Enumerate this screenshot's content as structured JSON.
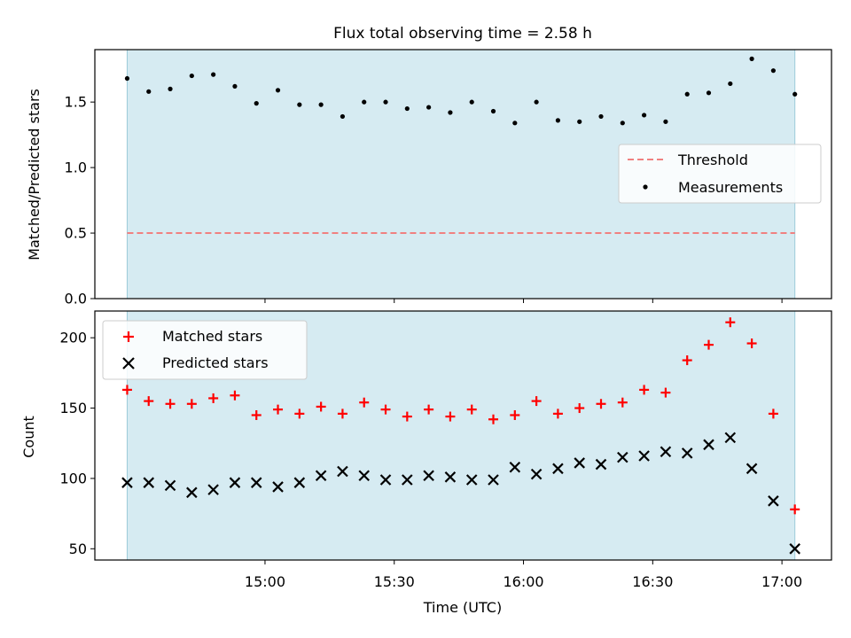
{
  "chart_data": [
    {
      "type": "scatter",
      "title": "Flux total observing time = 2.58 h",
      "xlabel": "",
      "ylabel": "Matched/Predicted stars",
      "ylim": [
        0,
        1.9
      ],
      "yticks": [
        0.0,
        0.5,
        1.0,
        1.5
      ],
      "ytick_labels": [
        "0.0",
        "0.5",
        "1.0",
        "1.5"
      ],
      "xlim_minutes": [
        860.5,
        1031.5
      ],
      "shaded_span_minutes": [
        868,
        1023
      ],
      "shade_color": "#add8e6",
      "legend_position": "center-right",
      "series": [
        {
          "name": "Threshold",
          "kind": "dashed-line",
          "color": "#f08080",
          "x_start_minutes": 868,
          "x_end_minutes": 1023,
          "y": 0.5
        },
        {
          "name": "Measurements",
          "kind": "dots",
          "color": "#000000",
          "x_minutes": [
            868,
            873,
            878,
            883,
            888,
            893,
            898,
            903,
            908,
            913,
            918,
            923,
            928,
            933,
            938,
            943,
            948,
            953,
            958,
            963,
            968,
            973,
            978,
            983,
            988,
            993,
            998,
            1003,
            1008,
            1013,
            1018,
            1023
          ],
          "y": [
            1.68,
            1.58,
            1.6,
            1.7,
            1.71,
            1.62,
            1.49,
            1.59,
            1.48,
            1.48,
            1.39,
            1.5,
            1.5,
            1.45,
            1.46,
            1.42,
            1.5,
            1.43,
            1.34,
            1.5,
            1.36,
            1.35,
            1.39,
            1.34,
            1.4,
            1.35,
            1.56,
            1.57,
            1.64,
            1.83,
            1.74,
            1.56
          ]
        }
      ]
    },
    {
      "type": "scatter",
      "title": "",
      "xlabel": "Time (UTC)",
      "ylabel": "Count",
      "ylim": [
        42,
        219
      ],
      "yticks": [
        50,
        100,
        150,
        200
      ],
      "ytick_labels": [
        "50",
        "100",
        "150",
        "200"
      ],
      "xlim_minutes": [
        860.5,
        1031.5
      ],
      "xticks_minutes": [
        900,
        930,
        960,
        990,
        1020
      ],
      "xtick_labels": [
        "15:00",
        "15:30",
        "16:00",
        "16:30",
        "17:00"
      ],
      "shaded_span_minutes": [
        868,
        1023
      ],
      "shade_color": "#add8e6",
      "legend_position": "top-left",
      "series": [
        {
          "name": "Matched stars",
          "kind": "plus",
          "color": "#ff0000",
          "x_minutes": [
            868,
            873,
            878,
            883,
            888,
            893,
            898,
            903,
            908,
            913,
            918,
            923,
            928,
            933,
            938,
            943,
            948,
            953,
            958,
            963,
            968,
            973,
            978,
            983,
            988,
            993,
            998,
            1003,
            1008,
            1013,
            1018,
            1023
          ],
          "y": [
            163,
            155,
            153,
            153,
            157,
            159,
            145,
            149,
            146,
            151,
            146,
            154,
            149,
            144,
            149,
            144,
            149,
            142,
            145,
            155,
            146,
            150,
            153,
            154,
            163,
            161,
            184,
            195,
            211,
            196,
            146,
            78
          ]
        },
        {
          "name": "Predicted stars",
          "kind": "cross",
          "color": "#000000",
          "x_minutes": [
            868,
            873,
            878,
            883,
            888,
            893,
            898,
            903,
            908,
            913,
            918,
            923,
            928,
            933,
            938,
            943,
            948,
            953,
            958,
            963,
            968,
            973,
            978,
            983,
            988,
            993,
            998,
            1003,
            1008,
            1013,
            1018,
            1023
          ],
          "y": [
            97,
            97,
            95,
            90,
            92,
            97,
            97,
            94,
            97,
            102,
            105,
            102,
            99,
            99,
            102,
            101,
            99,
            99,
            108,
            103,
            107,
            111,
            110,
            115,
            116,
            119,
            118,
            124,
            129,
            107,
            84,
            50
          ]
        }
      ]
    }
  ]
}
